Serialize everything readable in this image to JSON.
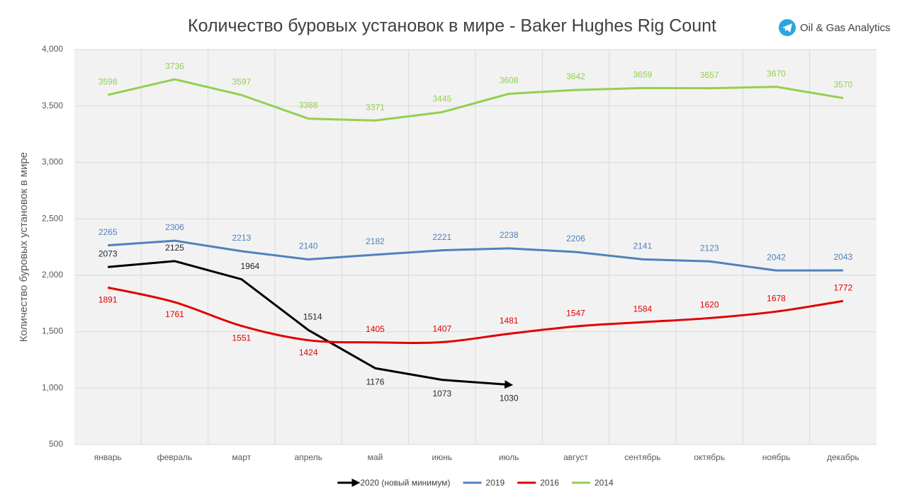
{
  "chart_data": {
    "type": "line",
    "title": "Количество буровых установок в мире - Baker Hughes Rig Count",
    "watermark": "Oil & Gas Analytics",
    "ylabel": "Количество буровых установок в мире",
    "categories": [
      "январь",
      "февраль",
      "март",
      "апрель",
      "май",
      "июнь",
      "июль",
      "август",
      "сентябрь",
      "октябрь",
      "ноябрь",
      "декабрь"
    ],
    "ylim": [
      500,
      4000
    ],
    "yticks": [
      500,
      {
        "value": 1000,
        "label": "1,000"
      },
      {
        "value": 1500,
        "label": "1,500"
      },
      {
        "value": 2000,
        "label": "2,000"
      },
      {
        "value": 2500,
        "label": "2,500"
      },
      {
        "value": 3000,
        "label": "3,000"
      },
      {
        "value": 3500,
        "label": "3,500"
      },
      {
        "value": 4000,
        "label": "4,000"
      }
    ],
    "grid": true,
    "legend": "bottom",
    "series": [
      {
        "name": "2020 (новый минимум)",
        "color": "#000000",
        "arrow": true,
        "values": [
          2073,
          2125,
          1964,
          1514,
          1176,
          1073,
          1030,
          null,
          null,
          null,
          null,
          null
        ]
      },
      {
        "name": "2019",
        "color": "#4f81bd",
        "values": [
          2265,
          2306,
          2213,
          2140,
          2182,
          2221,
          2238,
          2206,
          2141,
          2123,
          2042,
          2043
        ]
      },
      {
        "name": "2016",
        "color": "#e00000",
        "smooth": true,
        "values": [
          1891,
          1761,
          1551,
          1424,
          1405,
          1407,
          1481,
          1547,
          1584,
          1620,
          1678,
          1772
        ]
      },
      {
        "name": "2014",
        "color": "#92d050",
        "values": [
          3598,
          3736,
          3597,
          3388,
          3371,
          3445,
          3608,
          3642,
          3659,
          3657,
          3670,
          3570
        ]
      }
    ]
  }
}
